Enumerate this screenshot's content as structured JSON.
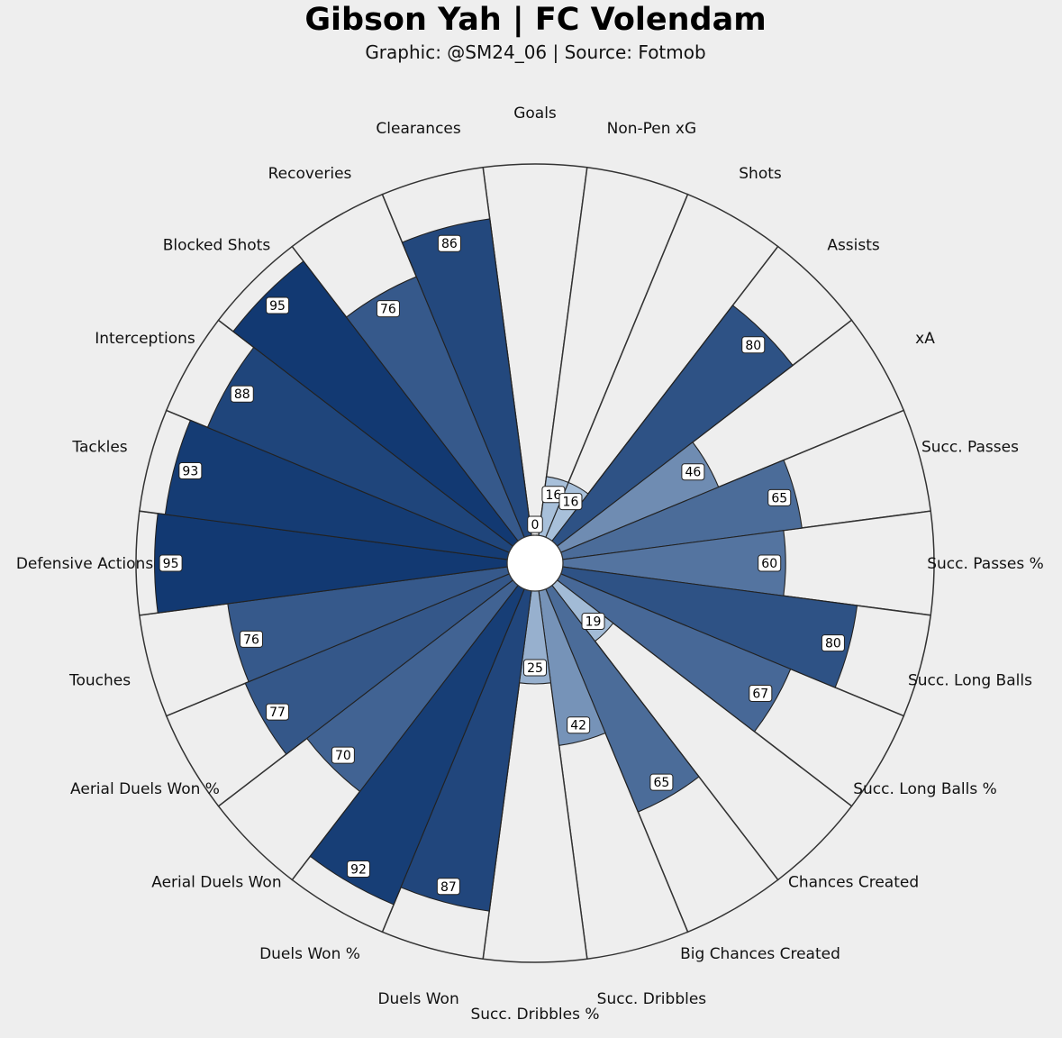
{
  "header": {
    "title": "Gibson Yah | FC Volendam",
    "subtitle": "Graphic: @SM24_06 | Source: Fotmob"
  },
  "colors": {
    "background": "#eeeeee",
    "bar_light": "#c6dbef",
    "bar_dark": "#08306b",
    "wedge_fill": "#eeeeee",
    "edge": "#333333"
  },
  "chart_data": {
    "type": "pizza",
    "title": "Gibson Yah | FC Volendam",
    "subtitle": "Graphic: @SM24_06 | Source: Fotmob",
    "ylim": [
      0,
      100
    ],
    "categories": [
      "Goals",
      "Non-Pen xG",
      "Shots",
      "Assists",
      "xA",
      "Succ. Passes",
      "Succ. Passes %",
      "Succ. Long Balls",
      "Succ. Long Balls %",
      "Chances Created",
      "Big Chances Created",
      "Succ. Dribbles",
      "Succ. Dribbles %",
      "Duels Won",
      "Duels Won %",
      "Aerial Duels Won",
      "Aerial Duels Won %",
      "Touches",
      "Defensive Actions",
      "Tackles",
      "Interceptions",
      "Blocked Shots",
      "Recoveries",
      "Clearances"
    ],
    "values": [
      0,
      16,
      16,
      80,
      46,
      65,
      60,
      80,
      67,
      19,
      65,
      42,
      25,
      87,
      92,
      70,
      77,
      76,
      95,
      93,
      88,
      95,
      76,
      86
    ],
    "value_labels": [
      "0",
      "16",
      "16",
      "80",
      "46",
      "65",
      "60",
      "80",
      "67",
      "19",
      "65",
      "42",
      "25",
      "87",
      "92",
      "70",
      "77",
      "76",
      "95",
      "93",
      "88",
      "95",
      "76",
      "86"
    ]
  }
}
